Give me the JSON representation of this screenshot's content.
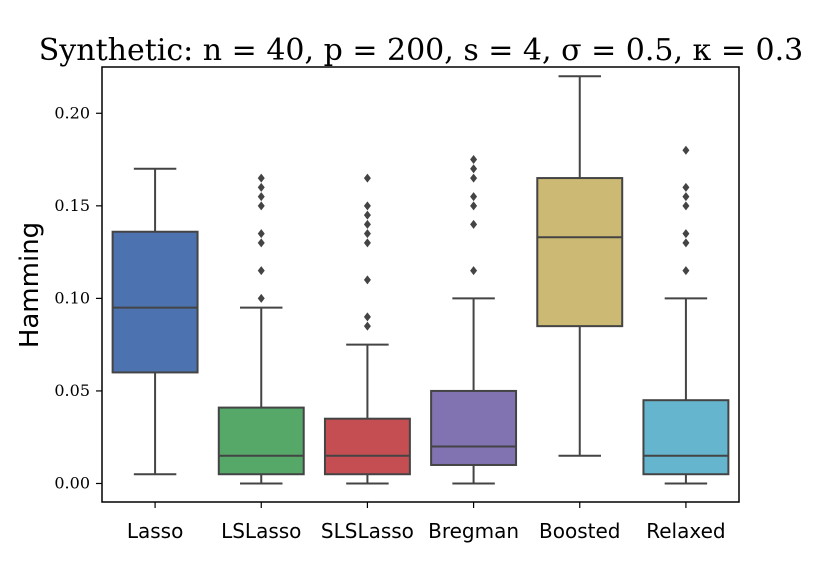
{
  "chart_data": {
    "type": "box",
    "title": "Synthetic: n = 40, p = 200, s = 4, σ = 0.5, κ = 0.3",
    "xlabel": "",
    "ylabel": "Hamming",
    "ylim": [
      -0.01,
      0.225
    ],
    "yticks": [
      "0.00",
      "0.05",
      "0.10",
      "0.15",
      "0.20"
    ],
    "ytick_values": [
      0.0,
      0.05,
      0.1,
      0.15,
      0.2
    ],
    "grid": false,
    "categories": [
      "Lasso",
      "LSLasso",
      "SLSLasso",
      "Bregman",
      "Boosted",
      "Relaxed"
    ],
    "boxes": [
      {
        "name": "Lasso",
        "color": "#4c72b0",
        "whisker_low": 0.005,
        "q1": 0.06,
        "median": 0.095,
        "q3": 0.136,
        "whisker_high": 0.17,
        "outliers": []
      },
      {
        "name": "LSLasso",
        "color": "#55a868",
        "whisker_low": 0.0,
        "q1": 0.005,
        "median": 0.015,
        "q3": 0.041,
        "whisker_high": 0.095,
        "outliers": [
          0.1,
          0.115,
          0.13,
          0.135,
          0.15,
          0.155,
          0.16,
          0.165
        ]
      },
      {
        "name": "SLSLasso",
        "color": "#c44e52",
        "whisker_low": 0.0,
        "q1": 0.005,
        "median": 0.015,
        "q3": 0.035,
        "whisker_high": 0.075,
        "outliers": [
          0.085,
          0.09,
          0.11,
          0.13,
          0.135,
          0.14,
          0.145,
          0.15,
          0.165
        ]
      },
      {
        "name": "Bregman",
        "color": "#8172b2",
        "whisker_low": 0.0,
        "q1": 0.01,
        "median": 0.02,
        "q3": 0.05,
        "whisker_high": 0.1,
        "outliers": [
          0.115,
          0.14,
          0.15,
          0.155,
          0.165,
          0.17,
          0.175
        ]
      },
      {
        "name": "Boosted",
        "color": "#ccb974",
        "whisker_low": 0.015,
        "q1": 0.085,
        "median": 0.133,
        "q3": 0.165,
        "whisker_high": 0.22,
        "outliers": []
      },
      {
        "name": "Relaxed",
        "color": "#64b5cd",
        "whisker_low": 0.0,
        "q1": 0.005,
        "median": 0.015,
        "q3": 0.045,
        "whisker_high": 0.1,
        "outliers": [
          0.115,
          0.13,
          0.135,
          0.15,
          0.155,
          0.16,
          0.18
        ]
      }
    ]
  }
}
